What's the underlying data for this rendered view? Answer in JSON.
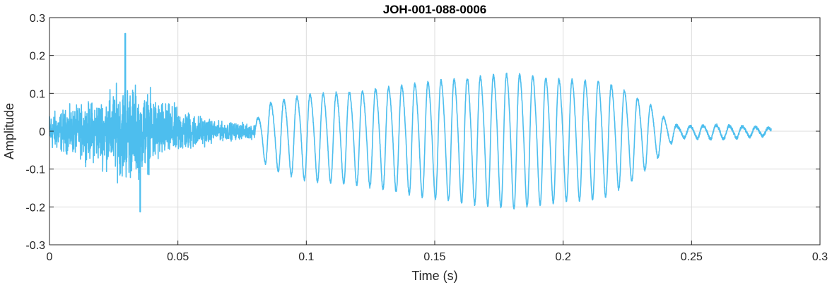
{
  "chart_data": {
    "type": "line",
    "title": "JOH-001-088-0006",
    "xlabel": "Time (s)",
    "ylabel": "Amplitude",
    "xlim": [
      0,
      0.3
    ],
    "ylim": [
      -0.3,
      0.3
    ],
    "xticks": [
      0,
      0.05,
      0.1,
      0.15,
      0.2,
      0.25,
      0.3
    ],
    "xtick_labels": [
      "0",
      "0.05",
      "0.1",
      "0.15",
      "0.2",
      "0.25",
      "0.3"
    ],
    "yticks": [
      -0.3,
      -0.2,
      -0.1,
      0,
      0.1,
      0.2,
      0.3
    ],
    "ytick_labels": [
      "-0.3",
      "-0.2",
      "-0.1",
      "0",
      "0.1",
      "0.2",
      "0.3"
    ],
    "grid": true,
    "color": "#4DBEEE",
    "series": [
      {
        "x_start": 0,
        "x_end": 0.281,
        "segments": [
          {
            "kind": "noise",
            "x": [
              0.0,
              0.08
            ],
            "envelope_x": [
              0.0,
              0.01,
              0.02,
              0.03,
              0.036,
              0.045,
              0.055,
              0.065,
              0.08
            ],
            "envelope": [
              0.08,
              0.1,
              0.14,
              0.21,
              0.18,
              0.12,
              0.08,
              0.04,
              0.03
            ]
          },
          {
            "kind": "oscillation",
            "x": [
              0.08,
              0.281
            ],
            "cycle_period": 0.0051,
            "envelope_x": [
              0.08,
              0.085,
              0.1,
              0.12,
              0.15,
              0.18,
              0.2,
              0.215,
              0.225,
              0.235,
              0.24,
              0.245,
              0.26,
              0.281
            ],
            "envelope": [
              0.03,
              0.09,
              0.12,
              0.13,
              0.165,
              0.19,
              0.17,
              0.165,
              0.13,
              0.08,
              0.04,
              0.015,
              0.02,
              0.01
            ]
          }
        ],
        "max_peak": {
          "x": 0.0295,
          "y": 0.258
        },
        "min_peak": {
          "x": 0.0353,
          "y": -0.213
        }
      }
    ]
  }
}
